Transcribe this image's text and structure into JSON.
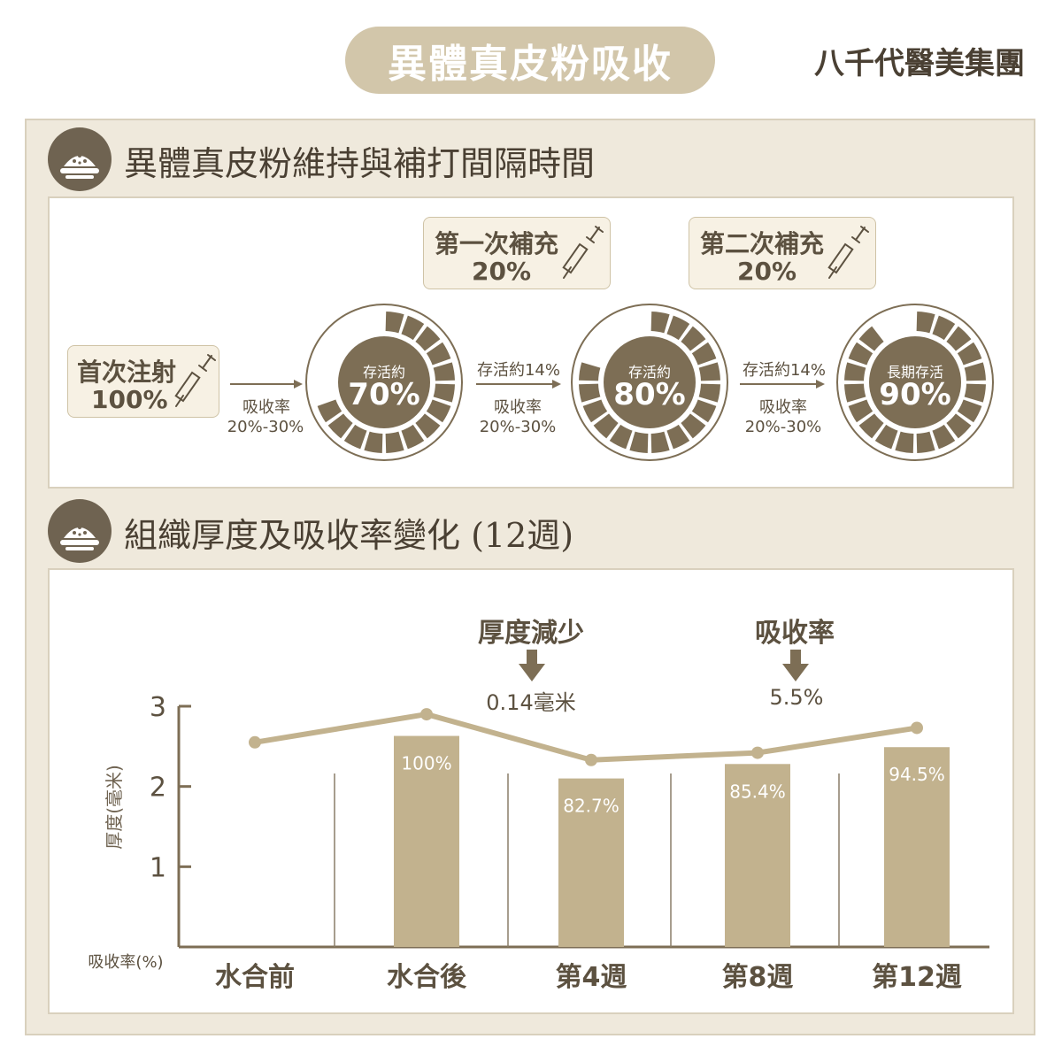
{
  "header": {
    "title": "異體真皮粉吸收",
    "brand": "八千代醫美集團"
  },
  "section1": {
    "title": "異體真皮粉維持與補打間隔時間",
    "initial": {
      "line1": "首次注射",
      "line2": "100%"
    },
    "refill1": {
      "line1": "第一次補充",
      "line2": "20%"
    },
    "refill2": {
      "line1": "第二次補充",
      "line2": "20%"
    },
    "arrow1": {
      "rate_label": "吸收率",
      "rate_value": "20%-30%"
    },
    "arrow2": {
      "survival": "存活約14%",
      "rate_label": "吸收率",
      "rate_value": "20%-30%"
    },
    "arrow3": {
      "survival": "存活約14%",
      "rate_label": "吸收率",
      "rate_value": "20%-30%"
    },
    "rings": [
      {
        "label": "存活約",
        "value": "70%",
        "fraction": 0.7
      },
      {
        "label": "存活約",
        "value": "80%",
        "fraction": 0.8
      },
      {
        "label": "長期存活",
        "value": "90%",
        "fraction": 0.9
      }
    ],
    "colors": {
      "accent": "#7d6e55",
      "light": "#efe9dc"
    }
  },
  "section2": {
    "title": "組織厚度及吸收率變化 (12週)",
    "annotation_thickness": {
      "label": "厚度減少",
      "value": "0.14毫米"
    },
    "annotation_absorption": {
      "label": "吸收率",
      "value": "5.5%"
    }
  },
  "chart_data": {
    "type": "bar",
    "categories": [
      "水合前",
      "水合後",
      "第4週",
      "第8週",
      "第12週"
    ],
    "ylabel": "厚度(毫米)",
    "xlabel": "吸收率(%)",
    "ylim": [
      0,
      3
    ],
    "yticks": [
      1,
      2,
      3
    ],
    "grid": false,
    "series": [
      {
        "type": "bar",
        "values": [
          null,
          2.63,
          2.1,
          2.28,
          2.49
        ],
        "labels": [
          "",
          "100%",
          "82.7%",
          "85.4%",
          "94.5%"
        ],
        "color": "#c2b28e"
      },
      {
        "type": "line",
        "values": [
          2.55,
          2.9,
          2.33,
          2.42,
          2.73
        ],
        "color": "#c2b28e"
      }
    ]
  }
}
